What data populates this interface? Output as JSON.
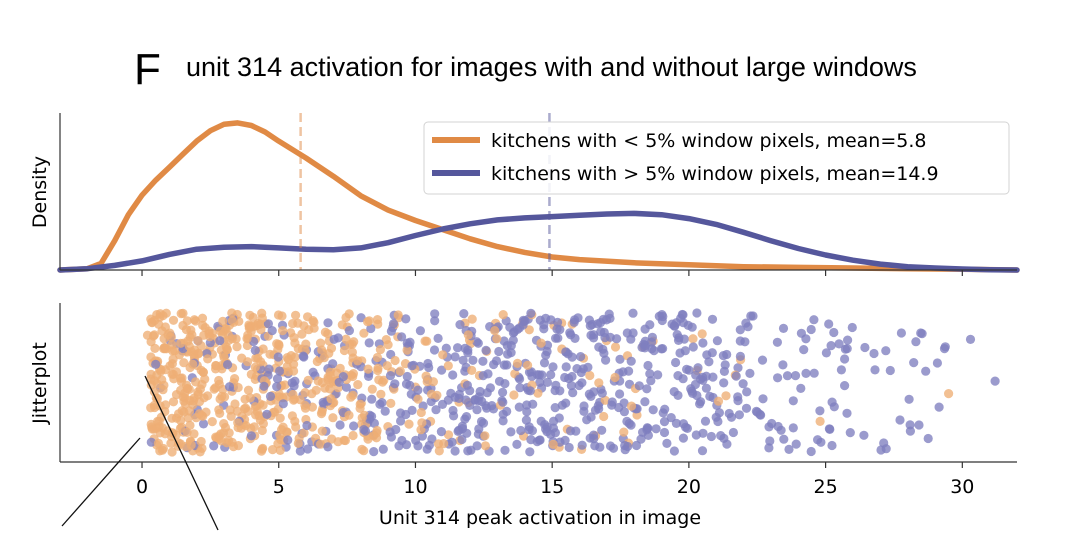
{
  "figure": {
    "panel_letter": "F",
    "title": "unit 314 activation for images with and without large windows"
  },
  "colors": {
    "series_low": "#e08a45",
    "series_high": "#55579c",
    "dots_low": "#eeae75",
    "dots_high": "#7f7fbf",
    "axis": "#333333"
  },
  "chart_data": [
    {
      "type": "area",
      "panel": "density",
      "ylabel": "Density",
      "xlim": [
        -3,
        32
      ],
      "y_ticks_shown": false,
      "grid": false,
      "legend_position": "top-right",
      "series": [
        {
          "name": "kitchens with < 5% window pixels, mean=5.8",
          "color": "#e08a45",
          "mean": 5.8,
          "x": [
            -3,
            -2,
            -1.5,
            -1,
            -0.5,
            0,
            0.5,
            1,
            1.5,
            2,
            2.5,
            3,
            3.5,
            4,
            4.5,
            5,
            6,
            7,
            8,
            9,
            10,
            11,
            12,
            13,
            14,
            15,
            16,
            18,
            20,
            22,
            24,
            26,
            28,
            30,
            32
          ],
          "y": [
            0,
            0.002,
            0.01,
            0.045,
            0.085,
            0.115,
            0.138,
            0.158,
            0.178,
            0.198,
            0.214,
            0.224,
            0.226,
            0.222,
            0.212,
            0.198,
            0.172,
            0.144,
            0.114,
            0.092,
            0.076,
            0.062,
            0.048,
            0.036,
            0.027,
            0.02,
            0.016,
            0.011,
            0.008,
            0.005,
            0.004,
            0.003,
            0.002,
            0.001,
            0
          ]
        },
        {
          "name": "kitchens with > 5% window pixels, mean=14.9",
          "color": "#55579c",
          "mean": 14.9,
          "x": [
            -3,
            -2,
            -1,
            0,
            1,
            2,
            3,
            4,
            5,
            6,
            7,
            8,
            9,
            10,
            11,
            12,
            13,
            14,
            15,
            16,
            17,
            18,
            19,
            20,
            21,
            22,
            23,
            24,
            25,
            26,
            27,
            28,
            29,
            30,
            31,
            32
          ],
          "y": [
            0,
            0.002,
            0.007,
            0.014,
            0.024,
            0.032,
            0.035,
            0.036,
            0.034,
            0.032,
            0.031,
            0.034,
            0.042,
            0.053,
            0.063,
            0.071,
            0.077,
            0.08,
            0.082,
            0.084,
            0.086,
            0.087,
            0.085,
            0.079,
            0.07,
            0.058,
            0.045,
            0.033,
            0.023,
            0.015,
            0.009,
            0.005,
            0.003,
            0.0015,
            0.0005,
            0
          ]
        }
      ]
    },
    {
      "type": "scatter",
      "panel": "jitterplot",
      "ylabel": "Jitterplot",
      "xlabel": "Unit 314 peak activation in image",
      "xlim": [
        -3,
        32
      ],
      "x_ticks": [
        0,
        5,
        10,
        15,
        20,
        25,
        30
      ],
      "x_tick_labels": [
        "0",
        "5",
        "10",
        "15",
        "20",
        "25",
        "30"
      ],
      "y_ticks_shown": false,
      "grid": false,
      "series": [
        {
          "name": "kitchens with < 5% window pixels, mean=5.8",
          "color": "#eeae75",
          "mean": 5.8,
          "count": 600,
          "range": [
            -0.5,
            30
          ],
          "x": [
            3.5,
            0.2,
            6.8,
            1.9,
            2.4,
            9.1,
            4.2,
            0.8,
            5.5,
            11.2,
            2.9,
            7.4,
            13.6,
            1.1,
            3.8,
            17.9,
            6.1,
            24.8,
            29.5,
            0.4
          ],
          "y": [
            0.21,
            0.84,
            0.52,
            0.13,
            0.67,
            0.35,
            0.91,
            0.48,
            0.26,
            0.62,
            0.08,
            0.73,
            0.41,
            0.56,
            0.19,
            0.33,
            0.88,
            0.22,
            0.42,
            0.64
          ]
        },
        {
          "name": "kitchens with > 5% window pixels, mean=14.9",
          "color": "#7f7fbf",
          "mean": 14.9,
          "count": 650,
          "range": [
            -0.3,
            32
          ],
          "x": [
            14.2,
            18.5,
            9.8,
            21.3,
            16.7,
            26.4,
            12.1,
            3.2,
            19.8,
            30.3,
            22.6,
            8.4,
            15.5,
            28.1,
            31.2,
            25.3,
            0.5,
            11.7,
            23.9,
            17.2
          ],
          "y": [
            0.44,
            0.17,
            0.79,
            0.58,
            0.31,
            0.12,
            0.66,
            0.47,
            0.93,
            0.81,
            0.27,
            0.38,
            0.72,
            0.15,
            0.51,
            0.86,
            0.63,
            0.09,
            0.55,
            0.36
          ]
        }
      ]
    }
  ]
}
